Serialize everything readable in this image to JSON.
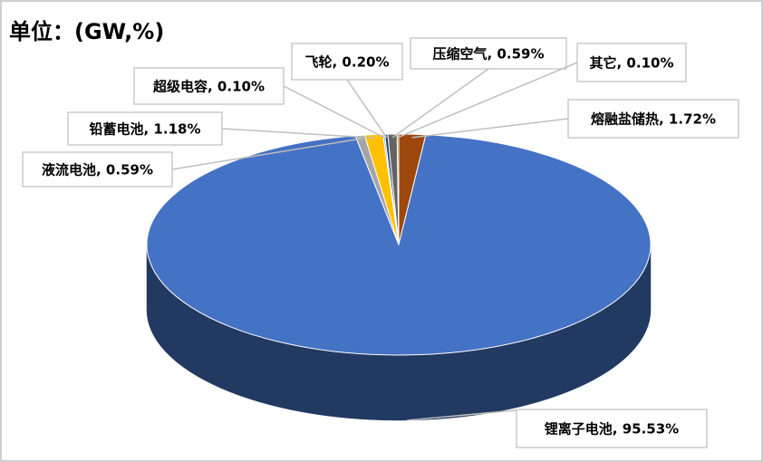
{
  "chart_data": {
    "type": "pie",
    "title": "单位：(GW,%)",
    "values": [
      1.72,
      95.53,
      0.59,
      1.18,
      0.1,
      0.2,
      0.59,
      0.1
    ],
    "value_labels": [
      "熔融盐储热, 1.72%",
      "锂离子电池, 95.53%",
      "液流电池, 0.59%",
      "铅蓄电池, 1.18%",
      "超级电容, 0.10%",
      "飞轮, 0.20%",
      "压缩空气, 0.59%",
      "其它, 0.10%"
    ],
    "colors": [
      "#9e480e",
      "#4472c4",
      "#a5a5a5",
      "#ffc000",
      "#5b9bd5",
      "#264478",
      "#636363",
      "#997300"
    ]
  }
}
